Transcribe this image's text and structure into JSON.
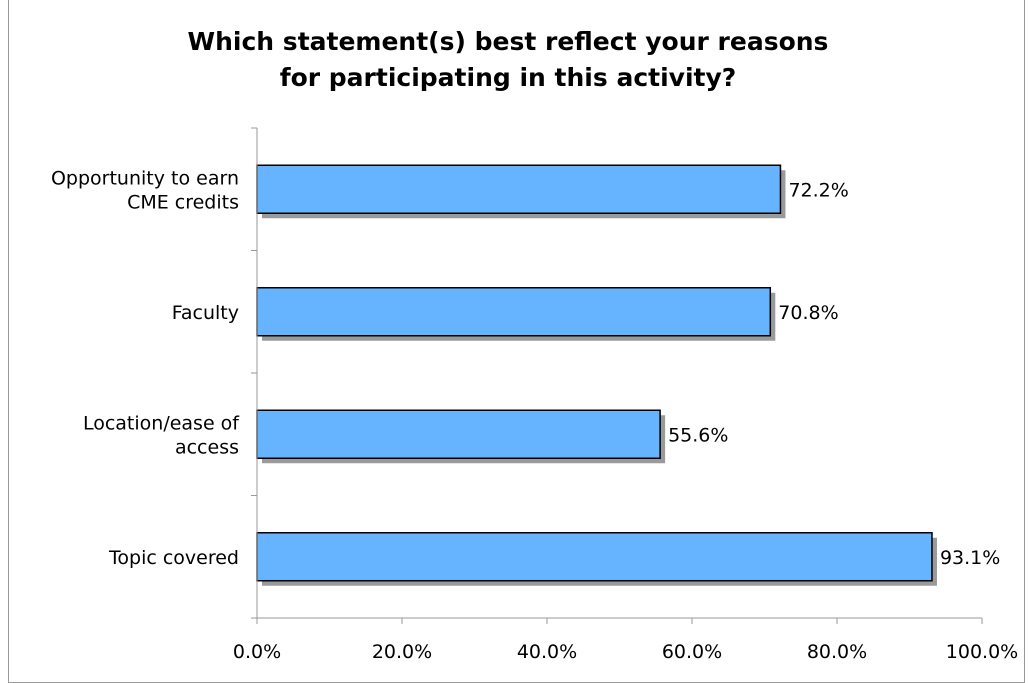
{
  "chart_data": {
    "type": "bar",
    "orientation": "horizontal",
    "title": "Which statement(s) best reflect your reasons for participating in this activity?",
    "title_lines": [
      "Which statement(s) best reflect your reasons",
      "for participating in this activity?"
    ],
    "categories": [
      [
        "Opportunity to earn",
        "CME credits"
      ],
      [
        "Faculty"
      ],
      [
        "Location/ease of",
        "access"
      ],
      [
        "Topic covered"
      ]
    ],
    "values": [
      72.2,
      70.8,
      55.6,
      93.1
    ],
    "value_labels": [
      "72.2%",
      "70.8%",
      "55.6%",
      "93.1%"
    ],
    "xlim": [
      0,
      100
    ],
    "x_ticks": [
      "0.0%",
      "20.0%",
      "40.0%",
      "60.0%",
      "80.0%",
      "100.0%"
    ],
    "xlabel": "",
    "ylabel": "",
    "grid": false,
    "legend": "none",
    "bar_color": "#66b3ff",
    "bar_border_color": "#000000",
    "shadow_color": "#9a9a9a"
  }
}
